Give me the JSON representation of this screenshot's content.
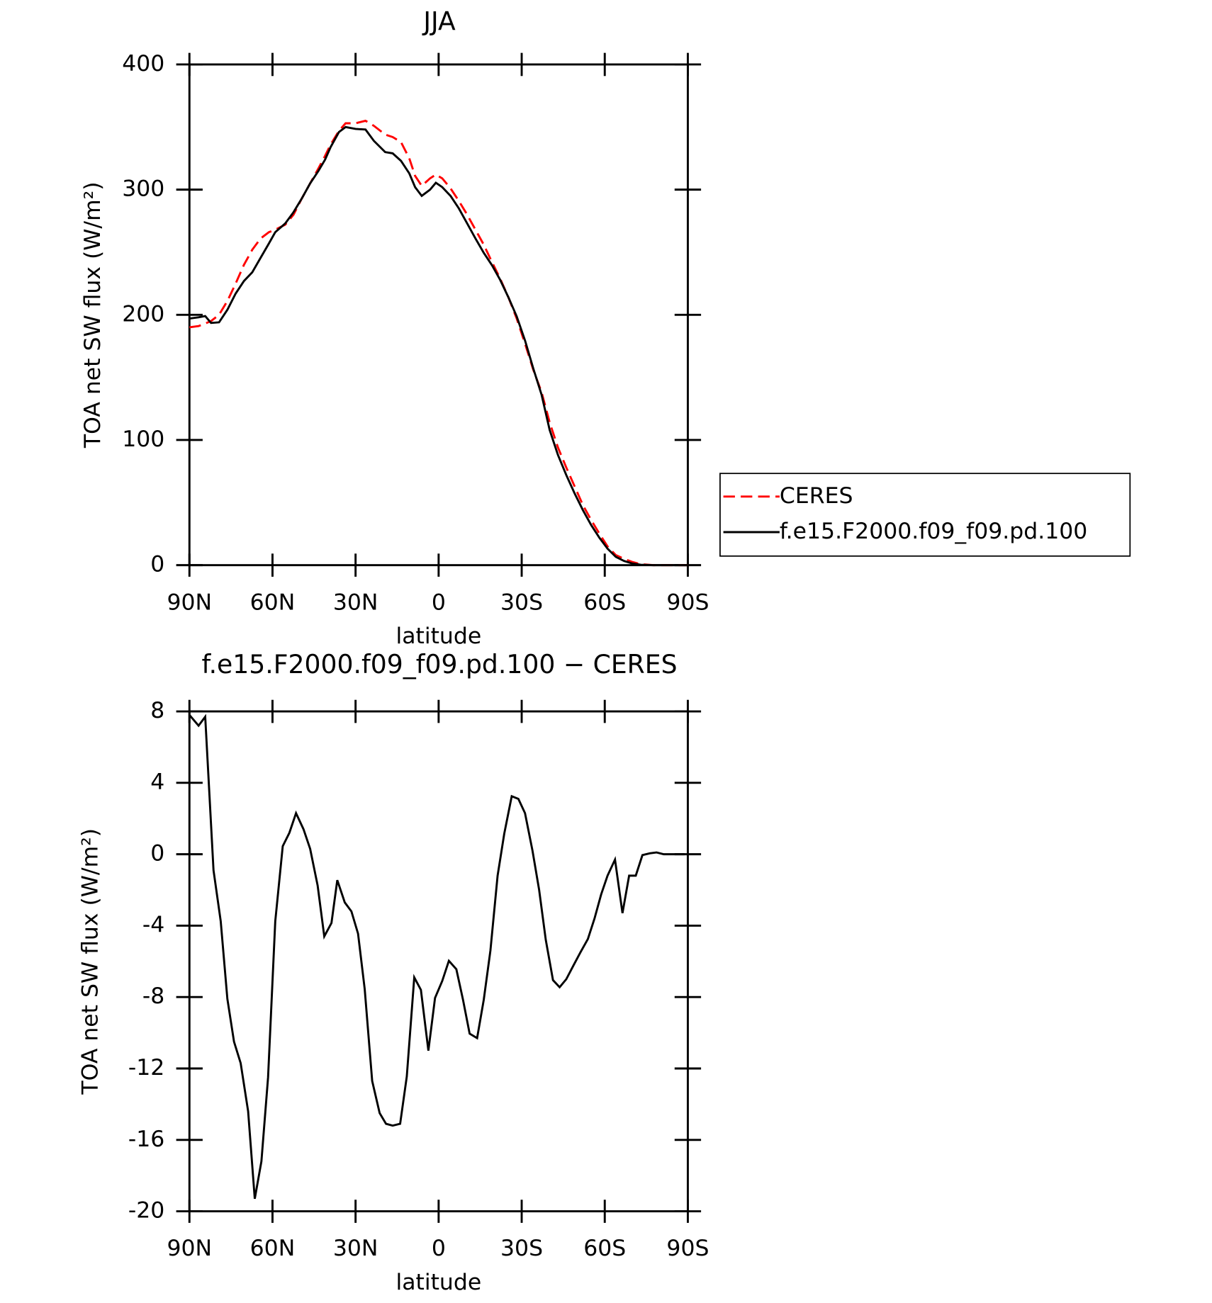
{
  "chart_data": [
    {
      "type": "line",
      "title": "JJA",
      "xlabel": "latitude",
      "ylabel": "TOA net SW flux (W/m²)",
      "xlim": [
        90,
        -90
      ],
      "xticks": [
        {
          "value": 90,
          "label": "90N"
        },
        {
          "value": 60,
          "label": "60N"
        },
        {
          "value": 30,
          "label": "30N"
        },
        0,
        {
          "value": -30,
          "label": "30S"
        },
        {
          "value": -60,
          "label": "60S"
        },
        {
          "value": -90,
          "label": "90S"
        }
      ],
      "ylim": [
        0,
        400
      ],
      "yticks": [
        0,
        100,
        200,
        300,
        400
      ],
      "legend": "right",
      "x": [
        90,
        86.7,
        84.3,
        82.2,
        79.3,
        76.3,
        73.3,
        70.3,
        67.3,
        64.3,
        61.3,
        59.0,
        55.4,
        52.4,
        49.4,
        46.4,
        43.4,
        41.0,
        39.0,
        36.0,
        33.6,
        30.0,
        26.4,
        23.4,
        19.3,
        16.6,
        13.6,
        10.6,
        8.5,
        6.1,
        3.1,
        1.0,
        -1.3,
        -4.3,
        -7.3,
        -10.3,
        -13.3,
        -16.3,
        -19.3,
        -22.2,
        -25.2,
        -28.2,
        -31.2,
        -34.2,
        -37.2,
        -40.1,
        -43.1,
        -46.1,
        -49.1,
        -52.1,
        -55.1,
        -58.1,
        -61.0,
        -64.0,
        -67.0,
        -70.0,
        -73.0,
        -77.5,
        -90
      ],
      "series": [
        {
          "name": "CERES",
          "color": "#ff0000",
          "linestyle": "dashed",
          "values": [
            190,
            191,
            193,
            195,
            200,
            211,
            225,
            240,
            252,
            261,
            266,
            268,
            272,
            280,
            293,
            305,
            317,
            327,
            336,
            347,
            353,
            353,
            355,
            351,
            344,
            342,
            338,
            325,
            311,
            303,
            309,
            312,
            309,
            301,
            291,
            280,
            268,
            256,
            242,
            229,
            214,
            197,
            177,
            156,
            138,
            114,
            94,
            78,
            63,
            48,
            36,
            25,
            15,
            8,
            5,
            2.5,
            0.8,
            0,
            0
          ]
        },
        {
          "name": "f.e15.F2000.f09_f09.pd.100",
          "color": "#000000",
          "linestyle": "solid",
          "values": [
            197,
            198,
            199,
            193.5,
            194,
            204,
            217,
            227,
            234,
            245.5,
            257,
            266,
            273,
            282,
            293,
            305,
            315,
            324,
            334,
            346,
            350,
            348.5,
            348,
            339,
            330,
            329,
            323,
            313,
            302,
            295,
            300,
            305.5,
            302,
            295,
            285,
            273,
            261,
            249.5,
            239.5,
            228,
            214,
            198.7,
            179.5,
            157,
            136,
            108,
            88,
            72,
            57.4,
            44,
            32,
            21.8,
            13.2,
            6.6,
            3.3,
            1.3,
            0.3,
            0,
            0
          ]
        }
      ]
    },
    {
      "type": "line",
      "title": "f.e15.F2000.f09_f09.pd.100 − CERES",
      "xlabel": "latitude",
      "ylabel": "TOA net SW flux (W/m²)",
      "xlim": [
        90,
        -90
      ],
      "xticks": [
        {
          "value": 90,
          "label": "90N"
        },
        {
          "value": 60,
          "label": "60N"
        },
        {
          "value": 30,
          "label": "30N"
        },
        0,
        {
          "value": -30,
          "label": "30S"
        },
        {
          "value": -60,
          "label": "60S"
        },
        {
          "value": -90,
          "label": "90S"
        }
      ],
      "ylim": [
        -20,
        8
      ],
      "yticks": [
        -20,
        -16,
        -12,
        -8,
        -4,
        0,
        4,
        8
      ],
      "color": "#000000",
      "x": [
        90,
        86.7,
        84.3,
        81.3,
        78.7,
        76.3,
        73.9,
        71.5,
        68.8,
        66.4,
        64.0,
        61.6,
        59.0,
        56.3,
        53.9,
        51.5,
        48.8,
        46.4,
        43.7,
        41.3,
        38.7,
        36.6,
        33.9,
        31.5,
        29.1,
        26.7,
        24.0,
        21.3,
        19.0,
        16.6,
        13.9,
        11.5,
        8.8,
        6.4,
        3.7,
        1.3,
        -1.3,
        -3.7,
        -6.4,
        -8.8,
        -11.2,
        -13.9,
        -16.3,
        -18.7,
        -21.3,
        -23.7,
        -26.4,
        -28.8,
        -31.2,
        -33.9,
        -36.3,
        -38.7,
        -41.3,
        -43.7,
        -46.1,
        -48.8,
        -51.2,
        -53.9,
        -56.3,
        -58.7,
        -61.0,
        -63.7,
        -66.4,
        -68.8,
        -71.2,
        -73.6,
        -76.3,
        -78.7,
        -81.3,
        -83.7,
        -86.4,
        -88.8
      ],
      "values": [
        7.8,
        7.2,
        7.7,
        -0.9,
        -3.75,
        -8.1,
        -10.5,
        -11.7,
        -14.4,
        -19.3,
        -17.2,
        -12.5,
        -3.75,
        0.45,
        1.2,
        2.3,
        1.4,
        0.3,
        -1.75,
        -4.6,
        -3.85,
        -1.45,
        -2.7,
        -3.2,
        -4.45,
        -7.55,
        -12.7,
        -14.5,
        -15.1,
        -15.2,
        -15.1,
        -12.45,
        -6.9,
        -7.6,
        -11.0,
        -8.05,
        -7.1,
        -5.97,
        -6.44,
        -8.15,
        -10.05,
        -10.3,
        -8.15,
        -5.4,
        -1.2,
        1.15,
        3.25,
        3.1,
        2.3,
        0.2,
        -2.0,
        -4.8,
        -7.05,
        -7.45,
        -7.0,
        -6.2,
        -5.5,
        -4.75,
        -3.6,
        -2.25,
        -1.2,
        -0.3,
        -3.3,
        -1.2,
        -1.2,
        -0.05,
        0.05,
        0.1,
        0,
        0,
        0,
        0
      ]
    }
  ]
}
